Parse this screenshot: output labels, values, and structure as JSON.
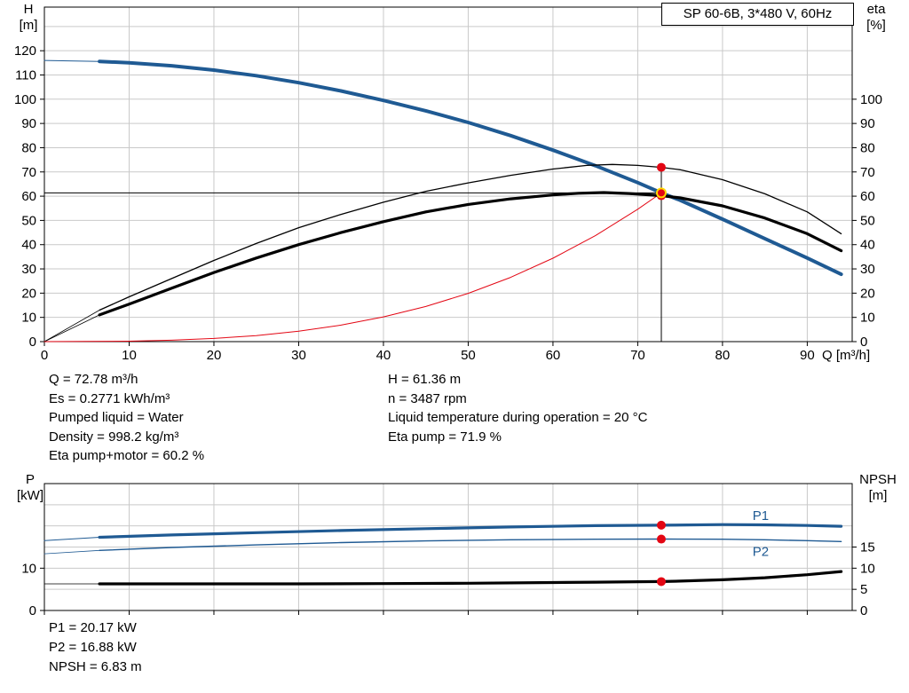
{
  "title_box": "SP 60-6B, 3*480 V, 60Hz",
  "colors": {
    "blue": "#1f5a93",
    "red": "#e30613",
    "grid": "#c9c9c9",
    "marker": "#e30613",
    "marker_ring": "#ffd800"
  },
  "info_top_left": [
    "Q = 72.78 m³/h",
    "Es = 0.2771 kWh/m³",
    "Pumped liquid = Water",
    "Density = 998.2 kg/m³",
    "Eta pump+motor = 60.2 %"
  ],
  "info_top_right": [
    "H = 61.36 m",
    "n = 3487 rpm",
    "Liquid temperature during operation = 20 °C",
    "Eta pump = 71.9 %"
  ],
  "info_bottom": [
    "P1 = 20.17 kW",
    "P2 = 16.88 kW",
    "NPSH = 6.83 m"
  ],
  "chart_data": [
    {
      "type": "line",
      "title": "SP 60-6B, 3*480 V, 60Hz",
      "x_axis_label": "Q [m³/h]",
      "y_left_label": [
        "H",
        "[m]"
      ],
      "y_right_label": [
        "eta",
        "[%]"
      ],
      "x_range": [
        0,
        95.3
      ],
      "y_range": [
        0,
        138
      ],
      "x_ticks": [
        0,
        10,
        20,
        30,
        40,
        50,
        60,
        70,
        80,
        90
      ],
      "show_x_labels": true,
      "y_left_ticks": [
        0,
        10,
        20,
        30,
        40,
        50,
        60,
        70,
        80,
        90,
        100,
        110,
        120
      ],
      "y_right_ticks": [
        0,
        10,
        20,
        30,
        40,
        50,
        60,
        70,
        80,
        90,
        100
      ],
      "grid_x": [
        10,
        20,
        30,
        40,
        50,
        60,
        70,
        80,
        90
      ],
      "grid_y": [
        10,
        20,
        30,
        40,
        50,
        60,
        70,
        80,
        90,
        100,
        110,
        120,
        130
      ],
      "duty_point": {
        "Q": 72.78,
        "H": 61.36,
        "eta_pump": 71.9,
        "eta_pump_motor": 60.2
      },
      "series": [
        {
          "name": "hq-curve-leader",
          "color": "#1f5a93",
          "width": 1,
          "points": [
            [
              0,
              116
            ],
            [
              6.5,
              115.6
            ]
          ]
        },
        {
          "name": "eta-pump-curve-leader",
          "color": "#000000",
          "width": 0.8,
          "points": [
            [
              0,
              0
            ],
            [
              6.5,
              13
            ]
          ]
        },
        {
          "name": "eta-pump-motor-curve-leader",
          "color": "#000000",
          "width": 0.8,
          "points": [
            [
              0,
              0
            ],
            [
              6.5,
              11
            ]
          ]
        },
        {
          "name": "system-curve",
          "color": "#e30613",
          "width": 1,
          "points": [
            [
              0,
              0
            ],
            [
              5,
              0.1
            ],
            [
              10,
              0.2
            ],
            [
              15,
              0.6
            ],
            [
              20,
              1.3
            ],
            [
              25,
              2.5
            ],
            [
              30,
              4.3
            ],
            [
              35,
              6.8
            ],
            [
              40,
              10.2
            ],
            [
              45,
              14.5
            ],
            [
              50,
              19.9
            ],
            [
              55,
              26.5
            ],
            [
              60,
              34.4
            ],
            [
              65,
              43.7
            ],
            [
              70,
              54.6
            ],
            [
              72.78,
              61.36
            ]
          ]
        },
        {
          "name": "duty-vertical-line",
          "color": "#000000",
          "width": 1,
          "points": [
            [
              72.78,
              0
            ],
            [
              72.78,
              71.9
            ]
          ]
        },
        {
          "name": "duty-horizontal-line",
          "color": "#000000",
          "width": 1,
          "points": [
            [
              0,
              61.36
            ],
            [
              72.78,
              61.36
            ]
          ]
        },
        {
          "name": "hq-curve",
          "color": "#1f5a93",
          "width": 4,
          "points": [
            [
              6.5,
              115.6
            ],
            [
              10,
              115
            ],
            [
              15,
              113.8
            ],
            [
              20,
              112
            ],
            [
              25,
              109.7
            ],
            [
              30,
              106.8
            ],
            [
              35,
              103.4
            ],
            [
              40,
              99.5
            ],
            [
              45,
              95.2
            ],
            [
              50,
              90.4
            ],
            [
              55,
              85
            ],
            [
              60,
              79
            ],
            [
              65,
              72.6
            ],
            [
              70,
              65.6
            ],
            [
              72.78,
              61.4
            ],
            [
              75,
              58.3
            ],
            [
              80,
              50.5
            ],
            [
              85,
              42.5
            ],
            [
              90,
              34.5
            ],
            [
              94,
              27.8
            ]
          ]
        },
        {
          "name": "eta-pump-curve",
          "color": "#000000",
          "width": 1.3,
          "points": [
            [
              6.5,
              13
            ],
            [
              10,
              18.5
            ],
            [
              15,
              26
            ],
            [
              20,
              33.5
            ],
            [
              25,
              40.5
            ],
            [
              30,
              47
            ],
            [
              35,
              52.5
            ],
            [
              40,
              57.5
            ],
            [
              45,
              62
            ],
            [
              50,
              65.5
            ],
            [
              55,
              68.6
            ],
            [
              60,
              71.2
            ],
            [
              64,
              72.7
            ],
            [
              67,
              73.1
            ],
            [
              70,
              72.7
            ],
            [
              72.78,
              71.9
            ],
            [
              75,
              70.9
            ],
            [
              80,
              66.8
            ],
            [
              85,
              61
            ],
            [
              90,
              53.5
            ],
            [
              94,
              44.5
            ]
          ]
        },
        {
          "name": "eta-pump-motor-curve",
          "color": "#000000",
          "width": 3.2,
          "points": [
            [
              6.5,
              11
            ],
            [
              10,
              15.5
            ],
            [
              15,
              22
            ],
            [
              20,
              28.5
            ],
            [
              25,
              34.5
            ],
            [
              30,
              40
            ],
            [
              35,
              45
            ],
            [
              40,
              49.5
            ],
            [
              45,
              53.5
            ],
            [
              50,
              56.6
            ],
            [
              55,
              58.9
            ],
            [
              60,
              60.5
            ],
            [
              63,
              61.2
            ],
            [
              66,
              61.5
            ],
            [
              69,
              61.1
            ],
            [
              72.78,
              60.2
            ],
            [
              75,
              59.3
            ],
            [
              80,
              56
            ],
            [
              85,
              51
            ],
            [
              90,
              44.5
            ],
            [
              94,
              37.5
            ]
          ]
        }
      ],
      "series_labels": [],
      "markers": [
        {
          "name": "eta-pump-duty-marker",
          "x": 72.78,
          "y": 71.9
        },
        {
          "name": "eta-pump-motor-duty-marker",
          "x": 72.78,
          "y": 60.2
        },
        {
          "name": "duty-point-marker",
          "x": 72.78,
          "y": 61.36,
          "ring": "#ffd800"
        }
      ]
    },
    {
      "type": "line",
      "title": "",
      "x_axis_label": "",
      "y_left_label": [
        "P",
        "[kW]"
      ],
      "y_right_label": [
        "NPSH",
        "[m]"
      ],
      "x_range": [
        0,
        95.3
      ],
      "y_range": [
        0,
        30
      ],
      "x_ticks": [
        0,
        10,
        20,
        30,
        40,
        50,
        60,
        70,
        80,
        90
      ],
      "show_x_labels": false,
      "y_left_ticks": [
        0,
        10
      ],
      "y_right_ticks": [
        0,
        5,
        10,
        15
      ],
      "grid_x": [
        10,
        20,
        30,
        40,
        50,
        60,
        70,
        80,
        90
      ],
      "grid_y": [
        5,
        10,
        15,
        20,
        25
      ],
      "duty_point": {
        "Q": 72.78,
        "P1": 20.17,
        "P2": 16.88,
        "NPSH": 6.83
      },
      "series": [
        {
          "name": "p1-curve-leader",
          "color": "#1f5a93",
          "width": 1,
          "points": [
            [
              0,
              16.5
            ],
            [
              6.5,
              17.3
            ]
          ]
        },
        {
          "name": "p2-curve-leader",
          "color": "#1f5a93",
          "width": 0.8,
          "points": [
            [
              0,
              13.4
            ],
            [
              6.5,
              14.2
            ]
          ]
        },
        {
          "name": "npsh-curve-leader",
          "color": "#000000",
          "width": 0.8,
          "points": [
            [
              0,
              6.3
            ],
            [
              6.5,
              6.3
            ]
          ]
        },
        {
          "name": "p1-curve",
          "color": "#1f5a93",
          "width": 3.2,
          "points": [
            [
              6.5,
              17.3
            ],
            [
              15,
              17.85
            ],
            [
              25,
              18.4
            ],
            [
              35,
              18.9
            ],
            [
              45,
              19.35
            ],
            [
              55,
              19.75
            ],
            [
              65,
              20.05
            ],
            [
              72.78,
              20.17
            ],
            [
              80,
              20.3
            ],
            [
              85,
              20.25
            ],
            [
              90,
              20.1
            ],
            [
              94,
              19.9
            ]
          ]
        },
        {
          "name": "p2-curve",
          "color": "#1f5a93",
          "width": 1.4,
          "points": [
            [
              6.5,
              14.2
            ],
            [
              15,
              14.9
            ],
            [
              25,
              15.5
            ],
            [
              35,
              16.05
            ],
            [
              45,
              16.45
            ],
            [
              55,
              16.72
            ],
            [
              65,
              16.85
            ],
            [
              72.78,
              16.88
            ],
            [
              80,
              16.85
            ],
            [
              85,
              16.72
            ],
            [
              90,
              16.5
            ],
            [
              94,
              16.3
            ]
          ]
        },
        {
          "name": "npsh-curve",
          "color": "#000000",
          "width": 3.2,
          "points": [
            [
              6.5,
              6.3
            ],
            [
              20,
              6.3
            ],
            [
              30,
              6.3
            ],
            [
              40,
              6.35
            ],
            [
              50,
              6.45
            ],
            [
              60,
              6.6
            ],
            [
              65,
              6.7
            ],
            [
              70,
              6.8
            ],
            [
              72.78,
              6.83
            ],
            [
              75,
              6.95
            ],
            [
              80,
              7.25
            ],
            [
              85,
              7.75
            ],
            [
              90,
              8.45
            ],
            [
              94,
              9.2
            ]
          ]
        }
      ],
      "series_labels": [
        {
          "name": "p1-series-label",
          "text": "P1",
          "x": 84.5,
          "y": 21.4,
          "color": "#1f5a93"
        },
        {
          "name": "p2-series-label",
          "text": "P2",
          "x": 84.5,
          "y": 12.9,
          "color": "#1f5a93"
        }
      ],
      "markers": [
        {
          "name": "p1-duty-marker",
          "x": 72.78,
          "y": 20.17
        },
        {
          "name": "p2-duty-marker",
          "x": 72.78,
          "y": 16.88
        },
        {
          "name": "npsh-duty-marker",
          "x": 72.78,
          "y": 6.83
        }
      ]
    }
  ]
}
